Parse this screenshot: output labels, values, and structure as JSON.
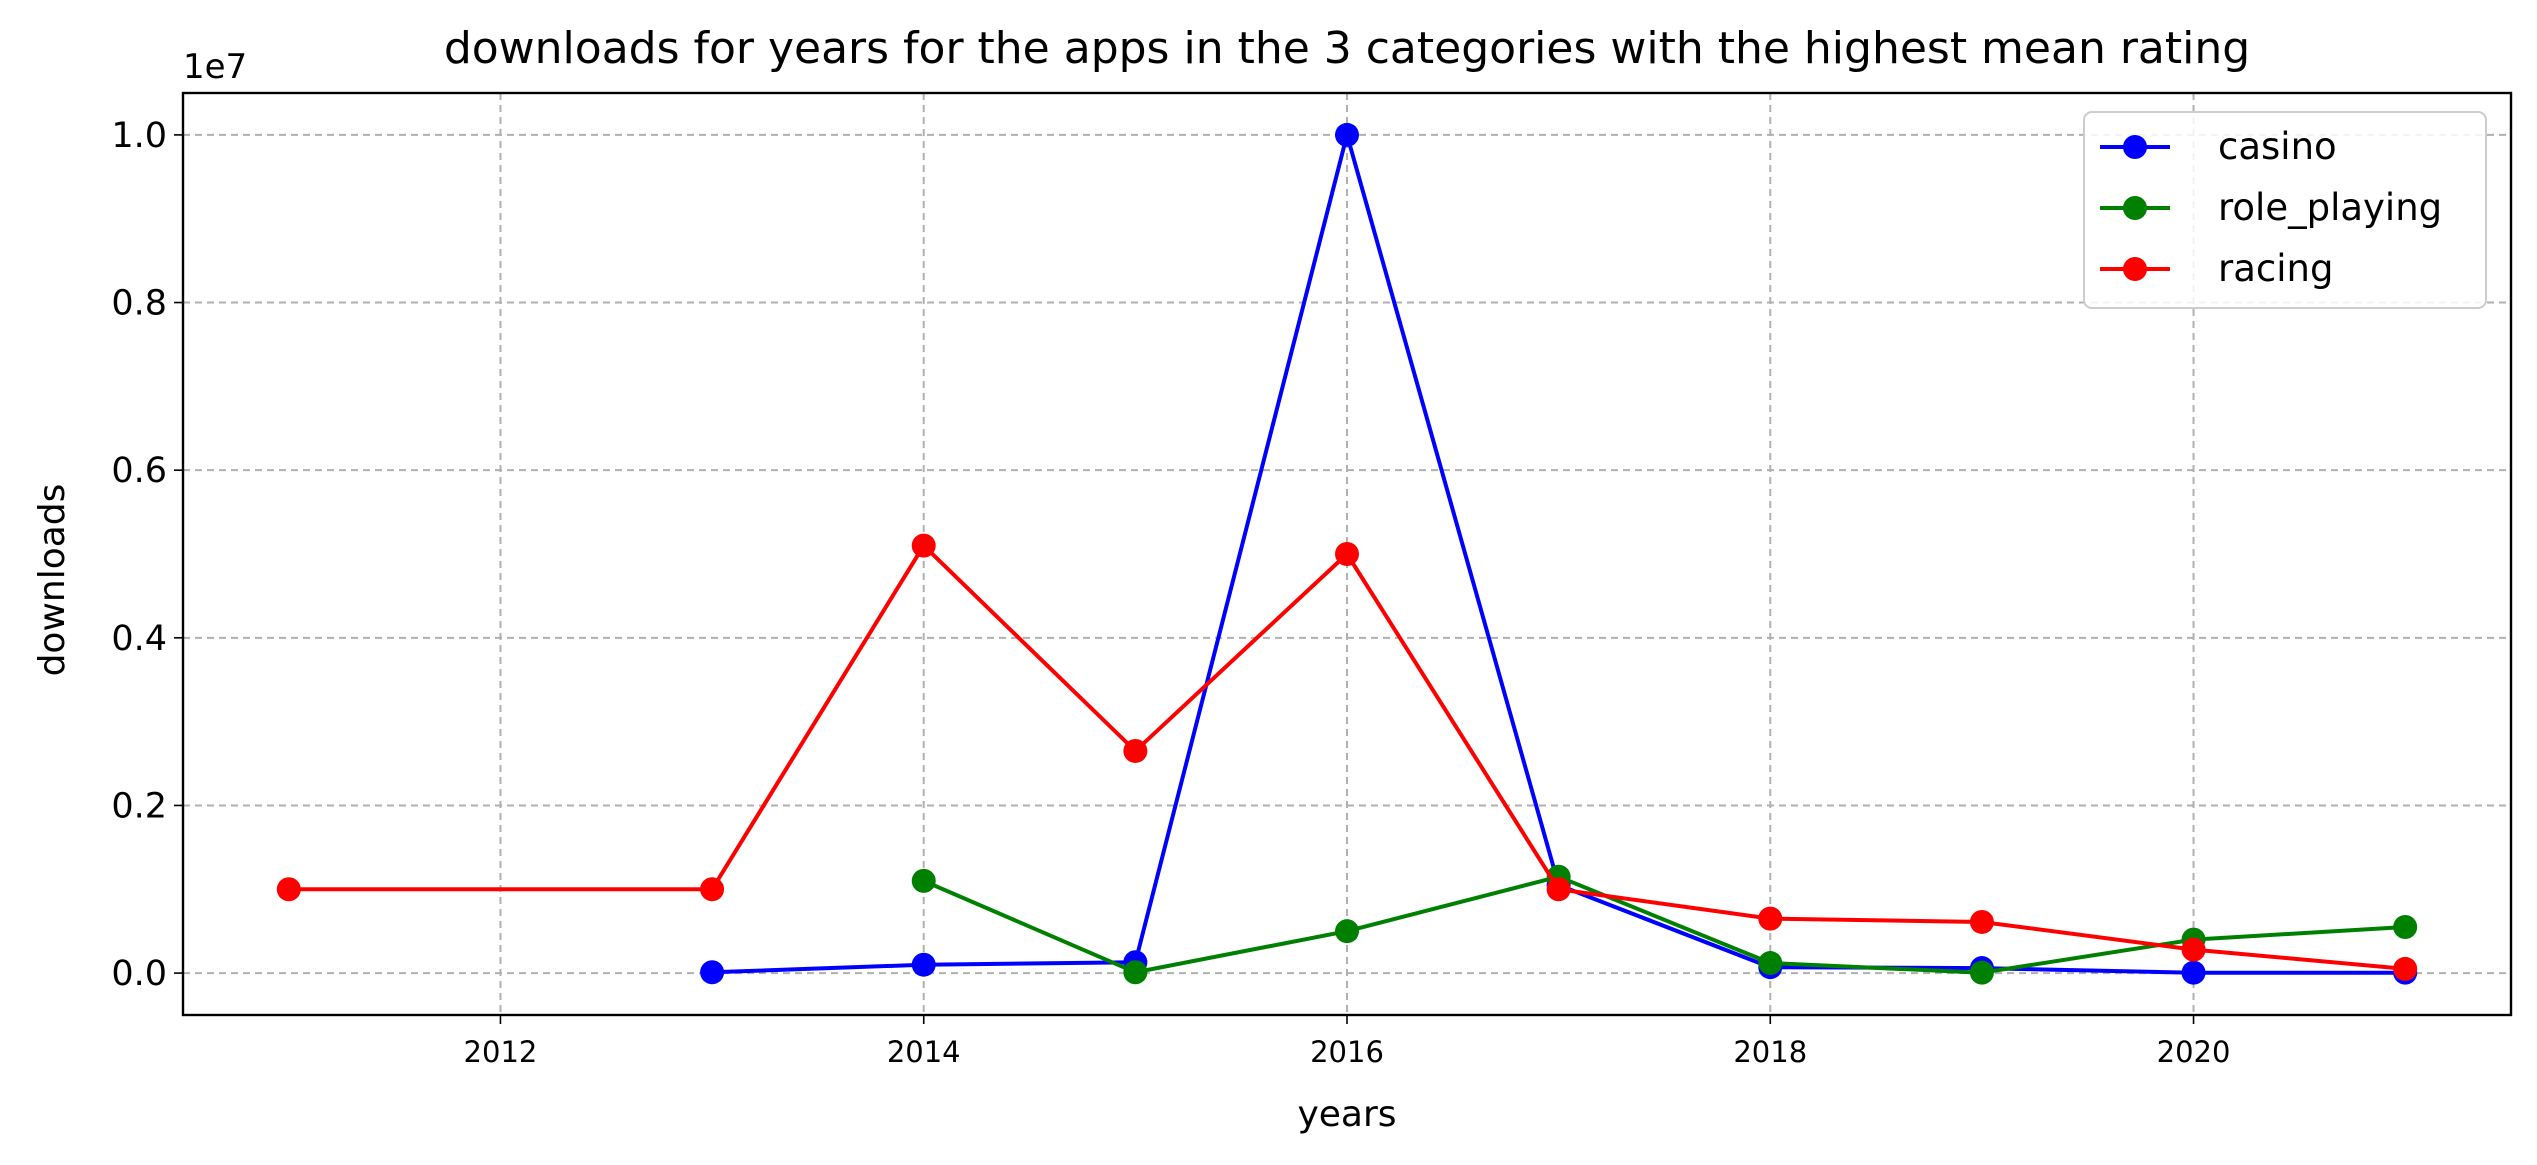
{
  "chart_data": {
    "type": "line",
    "title": "downloads for years for the apps in the 3 categories with the highest mean rating",
    "xlabel": "years",
    "ylabel": "downloads",
    "y_scale_label": "1e7",
    "y_scale": 10000000,
    "xlim": [
      2010.5,
      2021.5
    ],
    "ylim": [
      -0.05,
      1.05
    ],
    "x_ticks": [
      2012,
      2014,
      2016,
      2018,
      2020
    ],
    "x_tick_labels": [
      "2012",
      "2014",
      "2016",
      "2018",
      "2020"
    ],
    "y_ticks": [
      0.0,
      0.2,
      0.4,
      0.6,
      0.8,
      1.0
    ],
    "y_tick_labels": [
      "0.0",
      "0.2",
      "0.4",
      "0.6",
      "0.8",
      "1.0"
    ],
    "grid": true,
    "legend_position": "top-right",
    "series": [
      {
        "name": "casino",
        "color": "#0000ff",
        "x": [
          2013,
          2014,
          2015,
          2016,
          2017,
          2018,
          2019,
          2020,
          2021
        ],
        "values": [
          0.001,
          0.01,
          0.013,
          1.0,
          0.105,
          0.007,
          0.006,
          0.0005,
          0.0005
        ]
      },
      {
        "name": "role_playing",
        "color": "#008000",
        "x": [
          2014,
          2015,
          2016,
          2017,
          2018,
          2019,
          2020,
          2021
        ],
        "values": [
          0.11,
          0.001,
          0.05,
          0.115,
          0.012,
          0.0005,
          0.04,
          0.055
        ]
      },
      {
        "name": "racing",
        "color": "#ff0000",
        "x": [
          2011,
          2013,
          2014,
          2015,
          2016,
          2017,
          2018,
          2019,
          2020,
          2021
        ],
        "values": [
          0.1,
          0.1,
          0.51,
          0.265,
          0.5,
          0.1,
          0.065,
          0.061,
          0.028,
          0.005
        ]
      }
    ]
  }
}
